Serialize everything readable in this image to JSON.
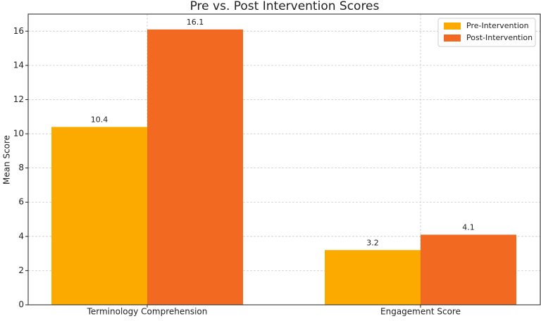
{
  "chart_data": {
    "type": "bar",
    "title": "Pre vs. Post Intervention Scores",
    "y_label": "Mean Score",
    "categories": [
      "Terminology Comprehension",
      "Engagement Score"
    ],
    "series": [
      {
        "name": "Pre-Intervention",
        "color": "#fcaa00",
        "values": [
          10.4,
          3.2
        ]
      },
      {
        "name": "Post-Intervention",
        "color": "#f26a22",
        "values": [
          16.1,
          4.1
        ]
      }
    ],
    "ylim": [
      0,
      17
    ],
    "yticks": [
      0,
      2,
      4,
      6,
      8,
      10,
      12,
      14,
      16
    ],
    "grid": true,
    "legend": "upper right"
  }
}
